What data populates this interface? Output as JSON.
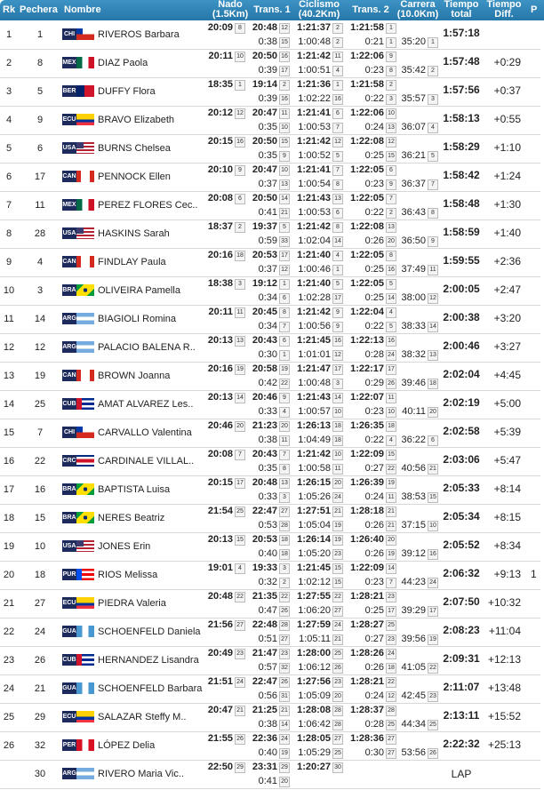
{
  "header": {
    "rk": "Rk",
    "bib": "Pechera",
    "name": "Nombre",
    "swim": "Nado",
    "swim_dist": "(1.5Km)",
    "t1": "Trans. 1",
    "bike": "Ciclismo",
    "bike_dist": "(40.2Km)",
    "t2": "Trans. 2",
    "run": "Carrera",
    "run_dist": "(10.0Km)",
    "total": "Tiempo",
    "total2": "total",
    "diff": "Tiempo",
    "diff2": "Diff.",
    "p": "P"
  },
  "colors": {
    "header": "#2a7fb0",
    "code_badge": "#1d2a5c"
  },
  "flags": {
    "CHI": "chile-flag",
    "MEX": "mexico-flag",
    "BER": "bermuda-flag",
    "ECU": "ecuador-flag",
    "USA": "usa-flag",
    "CAN": "canada-flag",
    "BRA": "brazil-flag",
    "ARG": "argentina-flag",
    "CUB": "cuba-flag",
    "CRC": "costa-rica-flag",
    "GUA": "guatemala-flag",
    "PUR": "puerto-rico-flag",
    "PER": "peru-flag"
  },
  "rows": [
    [
      "1",
      "1",
      "CHI",
      "RIVEROS Barbara",
      "20:09",
      "8",
      "20:48",
      "12",
      "0:38",
      "15",
      "1:21:37",
      "2",
      "1:00:48",
      "2",
      "1:21:58",
      "1",
      "0:21",
      "1",
      "35:20",
      "1",
      "1:57:18",
      "",
      ""
    ],
    [
      "2",
      "8",
      "MEX",
      "DIAZ Paola",
      "20:11",
      "10",
      "20:50",
      "16",
      "0:39",
      "17",
      "1:21:42",
      "11",
      "1:00:51",
      "4",
      "1:22:06",
      "9",
      "0:23",
      "8",
      "35:42",
      "2",
      "1:57:48",
      "+0:29",
      ""
    ],
    [
      "3",
      "5",
      "BER",
      "DUFFY Flora",
      "18:35",
      "1",
      "19:14",
      "2",
      "0:39",
      "16",
      "1:21:36",
      "1",
      "1:02:22",
      "16",
      "1:21:58",
      "2",
      "0:22",
      "3",
      "35:57",
      "3",
      "1:57:56",
      "+0:37",
      ""
    ],
    [
      "4",
      "9",
      "ECU",
      "BRAVO Elizabeth",
      "20:12",
      "12",
      "20:47",
      "11",
      "0:35",
      "10",
      "1:21:41",
      "6",
      "1:00:53",
      "7",
      "1:22:06",
      "10",
      "0:24",
      "13",
      "36:07",
      "4",
      "1:58:13",
      "+0:55",
      ""
    ],
    [
      "5",
      "6",
      "USA",
      "BURNS Chelsea",
      "20:15",
      "16",
      "20:50",
      "15",
      "0:35",
      "9",
      "1:21:42",
      "12",
      "1:00:52",
      "5",
      "1:22:08",
      "12",
      "0:25",
      "15",
      "36:21",
      "5",
      "1:58:29",
      "+1:10",
      ""
    ],
    [
      "6",
      "17",
      "CAN",
      "PENNOCK Ellen",
      "20:10",
      "9",
      "20:47",
      "10",
      "0:37",
      "13",
      "1:21:41",
      "7",
      "1:00:54",
      "8",
      "1:22:05",
      "6",
      "0:23",
      "9",
      "36:37",
      "7",
      "1:58:42",
      "+1:24",
      ""
    ],
    [
      "7",
      "11",
      "MEX",
      "PEREZ FLORES Cec..",
      "20:08",
      "6",
      "20:50",
      "14",
      "0:41",
      "21",
      "1:21:43",
      "13",
      "1:00:53",
      "6",
      "1:22:05",
      "7",
      "0:22",
      "2",
      "36:43",
      "8",
      "1:58:48",
      "+1:30",
      ""
    ],
    [
      "8",
      "28",
      "USA",
      "HASKINS Sarah",
      "18:37",
      "2",
      "19:37",
      "5",
      "0:59",
      "33",
      "1:21:42",
      "8",
      "1:02:04",
      "14",
      "1:22:08",
      "13",
      "0:26",
      "20",
      "36:50",
      "9",
      "1:58:59",
      "+1:40",
      ""
    ],
    [
      "9",
      "4",
      "CAN",
      "FINDLAY Paula",
      "20:16",
      "18",
      "20:53",
      "17",
      "0:37",
      "12",
      "1:21:40",
      "4",
      "1:00:46",
      "1",
      "1:22:05",
      "8",
      "0:25",
      "16",
      "37:49",
      "11",
      "1:59:55",
      "+2:36",
      ""
    ],
    [
      "10",
      "3",
      "BRA",
      "OLIVEIRA Pamella",
      "18:38",
      "3",
      "19:12",
      "1",
      "0:34",
      "6",
      "1:21:40",
      "5",
      "1:02:28",
      "17",
      "1:22:05",
      "5",
      "0:25",
      "14",
      "38:00",
      "12",
      "2:00:05",
      "+2:47",
      ""
    ],
    [
      "11",
      "14",
      "ARG",
      "BIAGIOLI Romina",
      "20:11",
      "11",
      "20:45",
      "8",
      "0:34",
      "7",
      "1:21:42",
      "9",
      "1:00:56",
      "9",
      "1:22:04",
      "4",
      "0:22",
      "5",
      "38:33",
      "14",
      "2:00:38",
      "+3:20",
      ""
    ],
    [
      "12",
      "12",
      "ARG",
      "PALACIO BALENA R..",
      "20:13",
      "13",
      "20:43",
      "6",
      "0:30",
      "1",
      "1:21:45",
      "16",
      "1:01:01",
      "12",
      "1:22:13",
      "16",
      "0:28",
      "24",
      "38:32",
      "13",
      "2:00:46",
      "+3:27",
      ""
    ],
    [
      "13",
      "19",
      "CAN",
      "BROWN Joanna",
      "20:16",
      "19",
      "20:58",
      "19",
      "0:42",
      "22",
      "1:21:47",
      "17",
      "1:00:48",
      "3",
      "1:22:17",
      "17",
      "0:29",
      "26",
      "39:46",
      "18",
      "2:02:04",
      "+4:45",
      ""
    ],
    [
      "14",
      "25",
      "CUB",
      "AMAT ALVAREZ Les..",
      "20:13",
      "14",
      "20:46",
      "9",
      "0:33",
      "4",
      "1:21:43",
      "14",
      "1:00:57",
      "10",
      "1:22:07",
      "11",
      "0:23",
      "10",
      "40:11",
      "20",
      "2:02:19",
      "+5:00",
      ""
    ],
    [
      "15",
      "7",
      "CHI",
      "CARVALLO Valentina",
      "20:46",
      "20",
      "21:23",
      "20",
      "0:38",
      "11",
      "1:26:13",
      "18",
      "1:04:49",
      "18",
      "1:26:35",
      "18",
      "0:22",
      "4",
      "36:22",
      "6",
      "2:02:58",
      "+5:39",
      ""
    ],
    [
      "16",
      "22",
      "CRC",
      "CARDINALE VILLAL..",
      "20:08",
      "7",
      "20:43",
      "7",
      "0:35",
      "8",
      "1:21:42",
      "10",
      "1:00:58",
      "11",
      "1:22:09",
      "15",
      "0:27",
      "22",
      "40:56",
      "21",
      "2:03:06",
      "+5:47",
      ""
    ],
    [
      "17",
      "16",
      "BRA",
      "BAPTISTA Luisa",
      "20:15",
      "17",
      "20:48",
      "13",
      "0:33",
      "3",
      "1:26:15",
      "20",
      "1:05:26",
      "24",
      "1:26:39",
      "19",
      "0:24",
      "11",
      "38:53",
      "15",
      "2:05:33",
      "+8:14",
      ""
    ],
    [
      "18",
      "15",
      "BRA",
      "NERES Beatriz",
      "21:54",
      "25",
      "22:47",
      "27",
      "0:53",
      "28",
      "1:27:51",
      "21",
      "1:05:04",
      "19",
      "1:28:18",
      "21",
      "0:26",
      "21",
      "37:15",
      "10",
      "2:05:34",
      "+8:15",
      ""
    ],
    [
      "19",
      "10",
      "USA",
      "JONES Erin",
      "20:13",
      "15",
      "20:53",
      "18",
      "0:40",
      "18",
      "1:26:14",
      "19",
      "1:05:20",
      "23",
      "1:26:40",
      "20",
      "0:26",
      "19",
      "39:12",
      "16",
      "2:05:52",
      "+8:34",
      ""
    ],
    [
      "20",
      "18",
      "PUR",
      "RIOS Melissa",
      "19:01",
      "4",
      "19:33",
      "3",
      "0:32",
      "2",
      "1:21:45",
      "15",
      "1:02:12",
      "15",
      "1:22:09",
      "14",
      "0:23",
      "7",
      "44:23",
      "24",
      "2:06:32",
      "+9:13",
      "1"
    ],
    [
      "21",
      "27",
      "ECU",
      "PIEDRA Valeria",
      "20:48",
      "22",
      "21:35",
      "22",
      "0:47",
      "26",
      "1:27:55",
      "22",
      "1:06:20",
      "27",
      "1:28:21",
      "23",
      "0:25",
      "17",
      "39:29",
      "17",
      "2:07:50",
      "+10:32",
      ""
    ],
    [
      "22",
      "24",
      "GUA",
      "SCHOENFELD Daniela",
      "21:56",
      "27",
      "22:48",
      "28",
      "0:51",
      "27",
      "1:27:59",
      "24",
      "1:05:11",
      "21",
      "1:28:27",
      "25",
      "0:27",
      "23",
      "39:56",
      "19",
      "2:08:23",
      "+11:04",
      ""
    ],
    [
      "23",
      "26",
      "CUB",
      "HERNANDEZ Lisandra",
      "20:49",
      "23",
      "21:47",
      "23",
      "0:57",
      "32",
      "1:28:00",
      "25",
      "1:06:12",
      "26",
      "1:28:26",
      "24",
      "0:26",
      "18",
      "41:05",
      "22",
      "2:09:31",
      "+12:13",
      ""
    ],
    [
      "24",
      "21",
      "GUA",
      "SCHOENFELD Barbara",
      "21:51",
      "24",
      "22:47",
      "26",
      "0:56",
      "31",
      "1:27:56",
      "23",
      "1:05:09",
      "20",
      "1:28:21",
      "22",
      "0:24",
      "12",
      "42:45",
      "23",
      "2:11:07",
      "+13:48",
      ""
    ],
    [
      "25",
      "29",
      "ECU",
      "SALAZAR Steffy M..",
      "20:47",
      "21",
      "21:25",
      "21",
      "0:38",
      "14",
      "1:28:08",
      "28",
      "1:06:42",
      "28",
      "1:28:37",
      "28",
      "0:28",
      "25",
      "44:34",
      "25",
      "2:13:11",
      "+15:52",
      ""
    ],
    [
      "26",
      "32",
      "PER",
      "LÓPEZ Delia",
      "21:55",
      "26",
      "22:36",
      "24",
      "0:40",
      "19",
      "1:28:05",
      "27",
      "1:05:29",
      "25",
      "1:28:36",
      "27",
      "0:30",
      "27",
      "53:56",
      "26",
      "2:22:32",
      "+25:13",
      ""
    ],
    [
      "",
      "30",
      "ARG",
      "RIVERO Maria Vic..",
      "22:50",
      "29",
      "23:31",
      "29",
      "0:41",
      "20",
      "1:20:27",
      "30",
      "",
      "",
      "",
      "",
      "",
      "",
      "",
      "",
      "LAP",
      "",
      ""
    ]
  ]
}
